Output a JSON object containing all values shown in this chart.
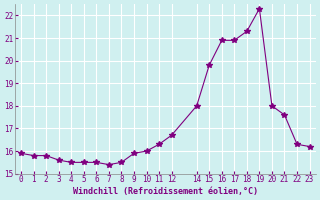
{
  "x": [
    0,
    1,
    2,
    3,
    4,
    5,
    6,
    7,
    8,
    9,
    10,
    11,
    12,
    14,
    15,
    16,
    17,
    18,
    19,
    20,
    21,
    22,
    23
  ],
  "y": [
    15.9,
    15.8,
    15.8,
    15.6,
    15.5,
    15.5,
    15.5,
    15.4,
    15.5,
    15.9,
    16.0,
    16.3,
    16.7,
    18.0,
    19.8,
    20.9,
    20.9,
    21.3,
    22.3,
    18.0,
    17.6,
    16.3,
    16.2
  ],
  "line_color": "#800080",
  "marker": "*",
  "marker_size": 4,
  "bg_color": "#d0f0f0",
  "grid_color": "#ffffff",
  "xlabel": "Windchill (Refroidissement éolien,°C)",
  "xlabel_color": "#800080",
  "tick_color": "#800080",
  "ylim": [
    15,
    22.5
  ],
  "yticks": [
    15,
    16,
    17,
    18,
    19,
    20,
    21,
    22
  ],
  "xticks": [
    0,
    1,
    2,
    3,
    4,
    5,
    6,
    7,
    8,
    9,
    10,
    11,
    12,
    14,
    15,
    16,
    17,
    18,
    19,
    20,
    21,
    22,
    23
  ]
}
